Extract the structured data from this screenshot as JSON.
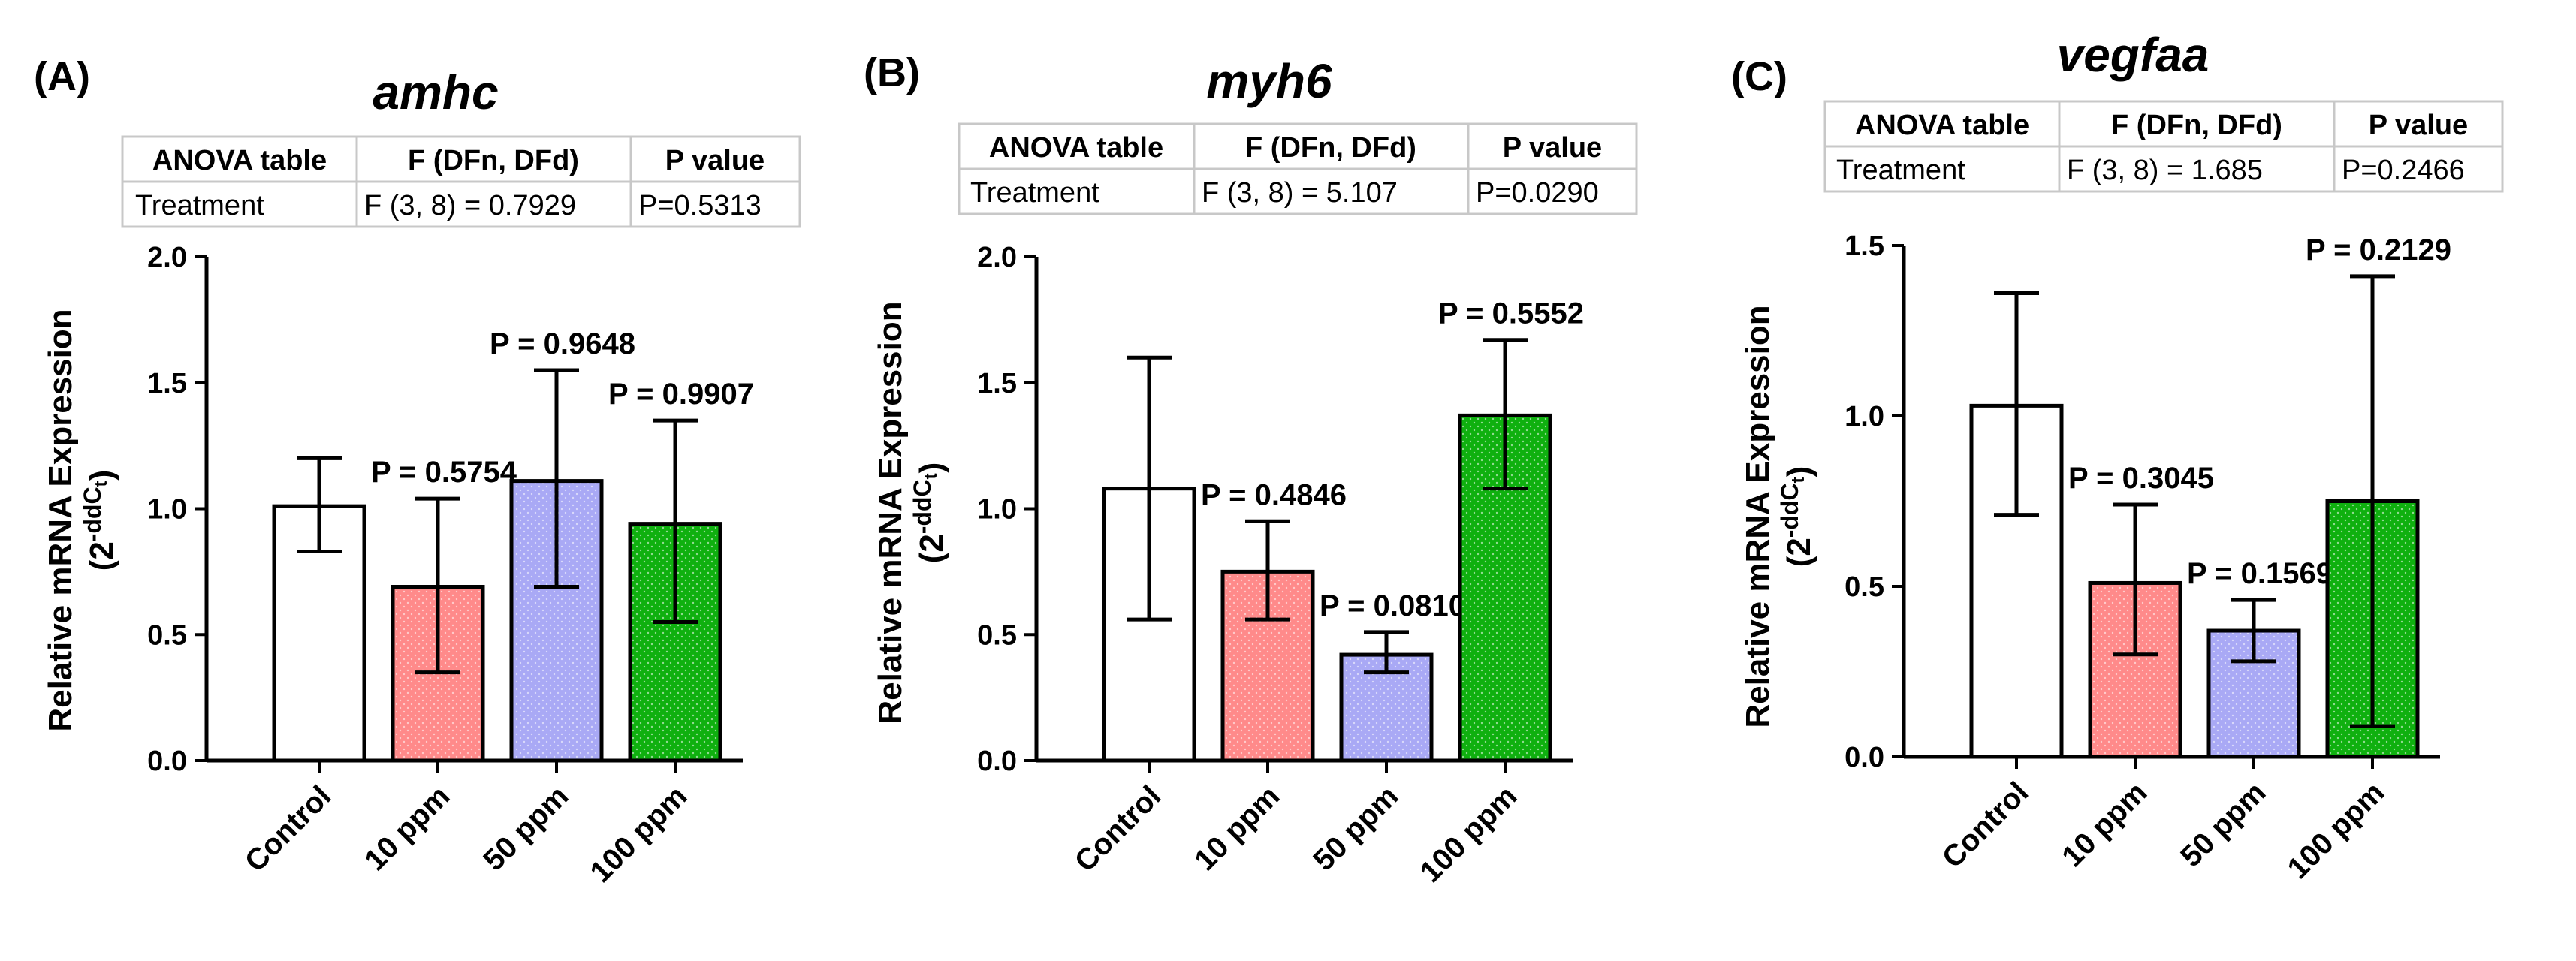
{
  "colors": {
    "control": "#ffffff",
    "ppm10": "#ff8a8a",
    "ppm50": "#a9a9f5",
    "ppm100": "#0fb00f",
    "table_border": "#c8c8c8"
  },
  "table_headers": [
    "ANOVA table",
    "F (DFn, DFd)",
    "P value"
  ],
  "chart_data": [
    {
      "type": "bar",
      "panel_label": "(A)",
      "title": "amhc",
      "table_row": [
        "Treatment",
        "F (3, 8) = 0.7929",
        "P=0.5313"
      ],
      "ylabel": "Relative mRNA Expression",
      "ylabel_sub": "(2",
      "ylabel_sup": "-ddC",
      "ylabel_subscript": "t",
      "ylabel_close": ")",
      "ylim": [
        0,
        2.0
      ],
      "yticks": [
        0,
        0.5,
        1.0,
        1.5,
        2.0
      ],
      "ytick_labels": [
        "0.0",
        "0.5",
        "1.0",
        "1.5",
        "2.0"
      ],
      "categories": [
        "Control",
        "10 ppm",
        "50 ppm",
        "100 ppm"
      ],
      "values": [
        1.01,
        0.69,
        1.11,
        0.94
      ],
      "err_low": [
        0.83,
        0.35,
        0.69,
        0.55
      ],
      "err_high": [
        1.2,
        1.04,
        1.55,
        1.35
      ],
      "p_labels": [
        "",
        "P = 0.5754",
        "P = 0.9648",
        "P = 0.9907"
      ]
    },
    {
      "type": "bar",
      "panel_label": "(B)",
      "title": "myh6",
      "table_row": [
        "Treatment",
        "F (3, 8) = 5.107",
        "P=0.0290"
      ],
      "ylabel": "Relative mRNA Expression",
      "ylabel_sub": "(2",
      "ylabel_sup": "-ddC",
      "ylabel_subscript": "t",
      "ylabel_close": ")",
      "ylim": [
        0,
        2.0
      ],
      "yticks": [
        0,
        0.5,
        1.0,
        1.5,
        2.0
      ],
      "ytick_labels": [
        "0.0",
        "0.5",
        "1.0",
        "1.5",
        "2.0"
      ],
      "categories": [
        "Control",
        "10 ppm",
        "50 ppm",
        "100 ppm"
      ],
      "values": [
        1.08,
        0.75,
        0.42,
        1.37
      ],
      "err_low": [
        0.56,
        0.56,
        0.35,
        1.08
      ],
      "err_high": [
        1.6,
        0.95,
        0.51,
        1.67
      ],
      "p_labels": [
        "",
        "P = 0.4846",
        "P = 0.0810",
        "P = 0.5552"
      ]
    },
    {
      "type": "bar",
      "panel_label": "(C)",
      "title": "vegfaa",
      "table_row": [
        "Treatment",
        "F (3, 8) = 1.685",
        "P=0.2466"
      ],
      "ylabel": "Relative mRNA Expression",
      "ylabel_sub": "(2",
      "ylabel_sup": "-ddC",
      "ylabel_subscript": "t",
      "ylabel_close": ")",
      "ylim": [
        0,
        1.5
      ],
      "yticks": [
        0,
        0.5,
        1.0,
        1.5
      ],
      "ytick_labels": [
        "0.0",
        "0.5",
        "1.0",
        "1.5"
      ],
      "categories": [
        "Control",
        "10 ppm",
        "50 ppm",
        "100 ppm"
      ],
      "values": [
        1.03,
        0.51,
        0.37,
        0.75
      ],
      "err_low": [
        0.71,
        0.3,
        0.28,
        0.09
      ],
      "err_high": [
        1.36,
        0.74,
        0.46,
        1.41
      ],
      "p_labels": [
        "",
        "P = 0.3045",
        "P = 0.1569",
        "P = 0.2129"
      ]
    }
  ]
}
